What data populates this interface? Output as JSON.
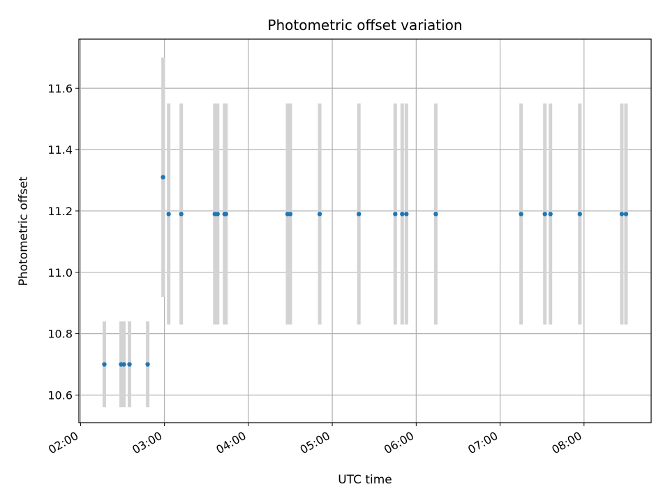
{
  "chart_data": {
    "type": "scatter",
    "title": "Photometric offset variation",
    "xlabel": "UTC time",
    "ylabel": "Photometric offset",
    "x_tick_labels": [
      "02:00",
      "03:00",
      "04:00",
      "05:00",
      "06:00",
      "07:00",
      "08:00"
    ],
    "y_tick_labels": [
      "10.6",
      "10.8",
      "11.0",
      "11.2",
      "11.4",
      "11.6"
    ],
    "x_ticks_hours": [
      2,
      3,
      4,
      5,
      6,
      7,
      8
    ],
    "y_ticks": [
      10.6,
      10.8,
      11.0,
      11.2,
      11.4,
      11.6
    ],
    "xlim_hours": [
      1.98,
      8.8
    ],
    "ylim": [
      10.51,
      11.76
    ],
    "grid": true,
    "point_color": "#1f77b4",
    "errorbar_color": "#d3d3d3",
    "series": [
      {
        "points": [
          {
            "x": "02:17",
            "y": 10.7,
            "yerr": 0.14
          },
          {
            "x": "02:29",
            "y": 10.7,
            "yerr": 0.14
          },
          {
            "x": "02:31",
            "y": 10.7,
            "yerr": 0.14
          },
          {
            "x": "02:35",
            "y": 10.7,
            "yerr": 0.14
          },
          {
            "x": "02:48",
            "y": 10.7,
            "yerr": 0.14
          },
          {
            "x": "02:59",
            "y": 11.31,
            "yerr": 0.39
          },
          {
            "x": "03:03",
            "y": 11.19,
            "yerr": 0.36
          },
          {
            "x": "03:12",
            "y": 11.19,
            "yerr": 0.36
          },
          {
            "x": "03:36",
            "y": 11.19,
            "yerr": 0.36
          },
          {
            "x": "03:38",
            "y": 11.19,
            "yerr": 0.36
          },
          {
            "x": "03:43",
            "y": 11.19,
            "yerr": 0.36
          },
          {
            "x": "03:44",
            "y": 11.19,
            "yerr": 0.36
          },
          {
            "x": "04:28",
            "y": 11.19,
            "yerr": 0.36
          },
          {
            "x": "04:30",
            "y": 11.19,
            "yerr": 0.36
          },
          {
            "x": "04:51",
            "y": 11.19,
            "yerr": 0.36
          },
          {
            "x": "05:19",
            "y": 11.19,
            "yerr": 0.36
          },
          {
            "x": "05:45",
            "y": 11.19,
            "yerr": 0.36
          },
          {
            "x": "05:50",
            "y": 11.19,
            "yerr": 0.36
          },
          {
            "x": "05:53",
            "y": 11.19,
            "yerr": 0.36
          },
          {
            "x": "06:14",
            "y": 11.19,
            "yerr": 0.36
          },
          {
            "x": "07:15",
            "y": 11.19,
            "yerr": 0.36
          },
          {
            "x": "07:32",
            "y": 11.19,
            "yerr": 0.36
          },
          {
            "x": "07:36",
            "y": 11.19,
            "yerr": 0.36
          },
          {
            "x": "07:57",
            "y": 11.19,
            "yerr": 0.36
          },
          {
            "x": "08:27",
            "y": 11.19,
            "yerr": 0.36
          },
          {
            "x": "08:30",
            "y": 11.19,
            "yerr": 0.36
          }
        ]
      }
    ]
  }
}
